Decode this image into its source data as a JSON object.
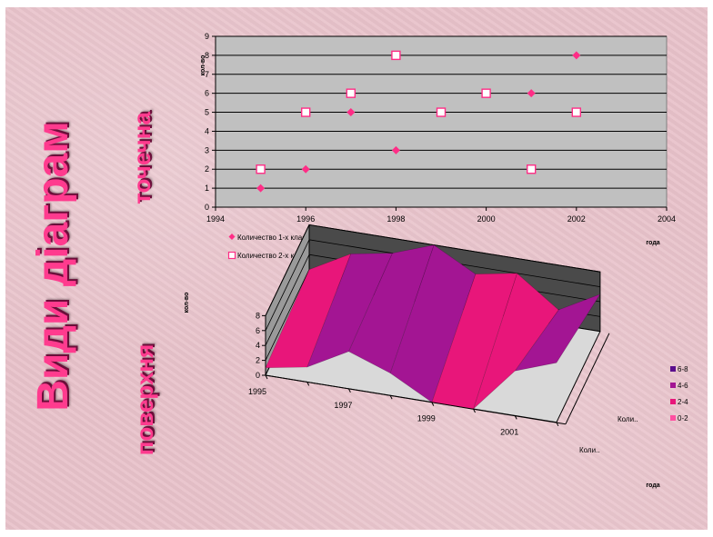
{
  "slide": {
    "title": "Види діаграм",
    "subtitle_scatter": "точечна",
    "subtitle_surface": "поверхня"
  },
  "colors": {
    "title_text": "#ff3b8e",
    "title_shadow": "#6b0f3a",
    "background": "#e9c3cb",
    "plot_area": "#c0c0c0",
    "series_marker": "#ff2d86",
    "surface_6_8": "#5b0e8c",
    "surface_4_6": "#a31593",
    "surface_2_4": "#e8167a",
    "surface_0_2": "#ff4fa1"
  },
  "chart_data": [
    {
      "type": "scatter",
      "title": "",
      "xlabel": "года",
      "ylabel": "кол-во",
      "xlim": [
        1994,
        2004
      ],
      "ylim": [
        0,
        9
      ],
      "xticks": [
        1994,
        1996,
        1998,
        2000,
        2002,
        2004
      ],
      "yticks": [
        0,
        1,
        2,
        3,
        4,
        5,
        6,
        7,
        8,
        9
      ],
      "grid": "horizontal",
      "legend": "bottom-left",
      "series": [
        {
          "name": "Количество 1-х классов",
          "marker": "diamond-filled",
          "points": [
            [
              1995,
              1
            ],
            [
              1996,
              2
            ],
            [
              1997,
              5
            ],
            [
              1998,
              3
            ],
            [
              2001,
              6
            ],
            [
              2002,
              8
            ]
          ]
        },
        {
          "name": "Количество 2-х классов",
          "marker": "square-open",
          "points": [
            [
              1995,
              2
            ],
            [
              1996,
              5
            ],
            [
              1997,
              6
            ],
            [
              1998,
              8
            ],
            [
              1999,
              5
            ],
            [
              2000,
              6
            ],
            [
              2001,
              2
            ],
            [
              2002,
              5
            ]
          ]
        }
      ]
    },
    {
      "type": "surface",
      "title": "",
      "xlabel": "года",
      "zlabel": "кол-во",
      "zlim": [
        0,
        8
      ],
      "zticks": [
        0,
        2,
        4,
        6,
        8
      ],
      "categories": [
        "1995",
        "1996",
        "1997",
        "1998",
        "1999",
        "2000",
        "2001",
        "2002"
      ],
      "category_tick_labels": [
        "1995",
        "1997",
        "1999",
        "2001"
      ],
      "series_axis_labels": [
        "Коли..",
        "Коли.."
      ],
      "series": [
        {
          "values": [
            1,
            2,
            5,
            3,
            0,
            0,
            6,
            8
          ]
        },
        {
          "values": [
            2,
            5,
            6,
            8,
            5,
            6,
            2,
            5
          ]
        }
      ],
      "legend": "right",
      "legend_items": [
        {
          "label": "6-8",
          "color": "#5b0e8c"
        },
        {
          "label": "4-6",
          "color": "#a31593"
        },
        {
          "label": "2-4",
          "color": "#e8167a"
        },
        {
          "label": "0-2",
          "color": "#ff4fa1"
        }
      ]
    }
  ]
}
